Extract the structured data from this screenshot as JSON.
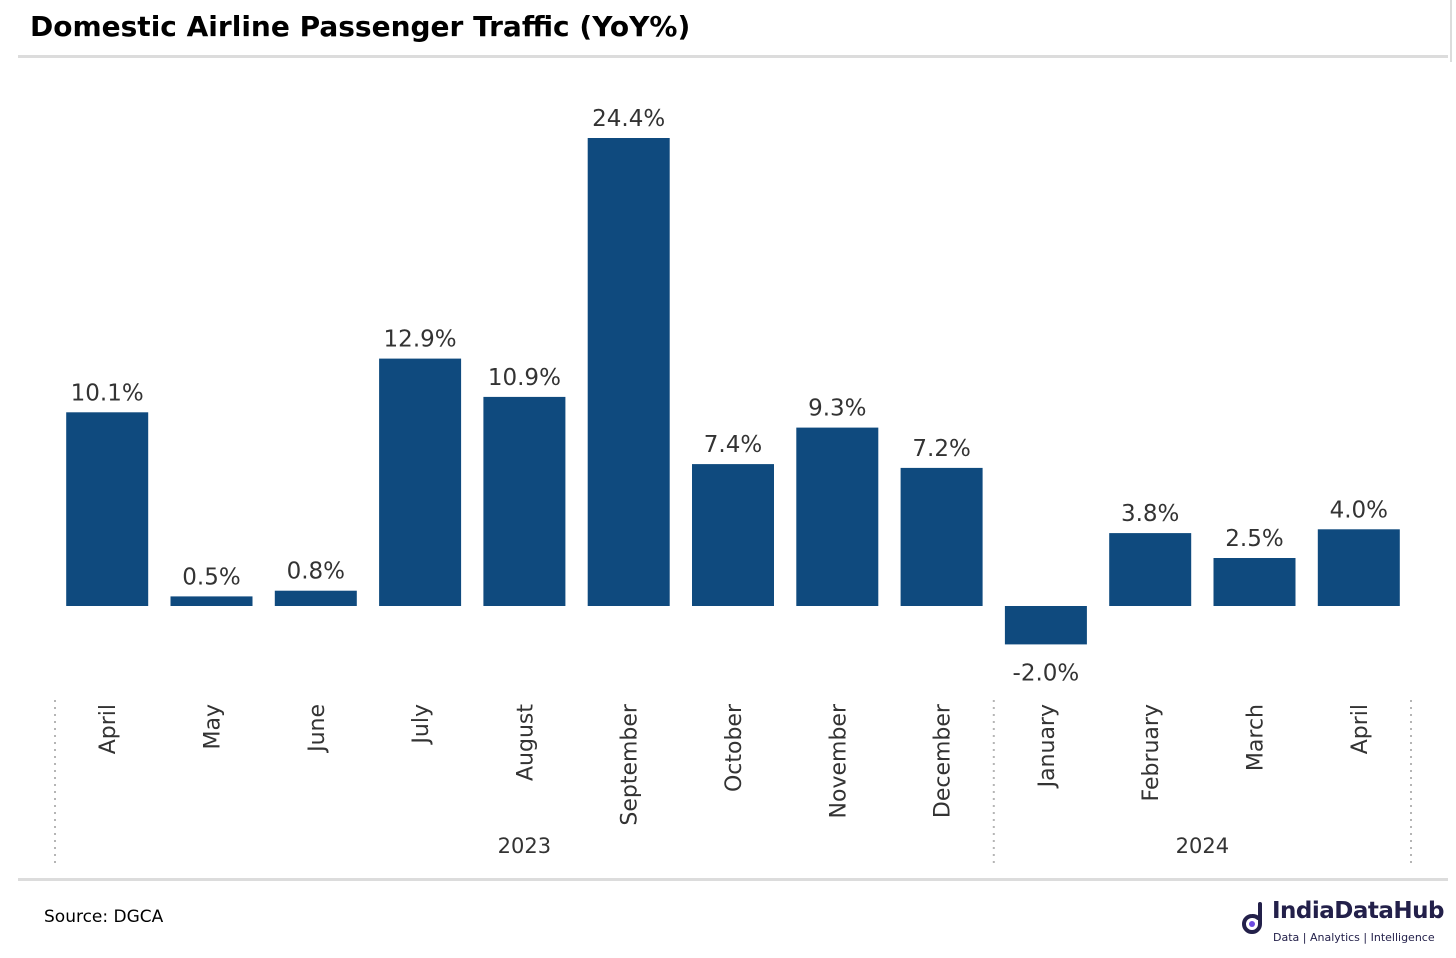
{
  "header": {
    "title": "Domestic Airline Passenger Traffic (YoY%)"
  },
  "footer": {
    "source": "Source: DGCA",
    "logo_name": "IndiaDataHub",
    "logo_tagline": "Data | Analytics | Intelligence"
  },
  "colors": {
    "bar": "#0f4a7e",
    "label": "#333333",
    "brand": "#23204a"
  },
  "chart_data": {
    "type": "bar",
    "title": "Domestic Airline Passenger Traffic (YoY%)",
    "categories": [
      "April",
      "May",
      "June",
      "July",
      "August",
      "September",
      "October",
      "November",
      "December",
      "January",
      "February",
      "March",
      "April"
    ],
    "values": [
      10.1,
      0.5,
      0.8,
      12.9,
      10.9,
      24.4,
      7.4,
      9.3,
      7.2,
      -2.0,
      3.8,
      2.5,
      4.0
    ],
    "data_labels": [
      "10.1%",
      "0.5%",
      "0.8%",
      "12.9%",
      "10.9%",
      "24.4%",
      "7.4%",
      "9.3%",
      "7.2%",
      "-2.0%",
      "3.8%",
      "2.5%",
      "4.0%"
    ],
    "groups": [
      {
        "label": "2023",
        "count": 9
      },
      {
        "label": "2024",
        "count": 4
      }
    ],
    "ylim": [
      -2.0,
      24.4
    ],
    "unit": "%",
    "grid": false,
    "legend": "none"
  }
}
